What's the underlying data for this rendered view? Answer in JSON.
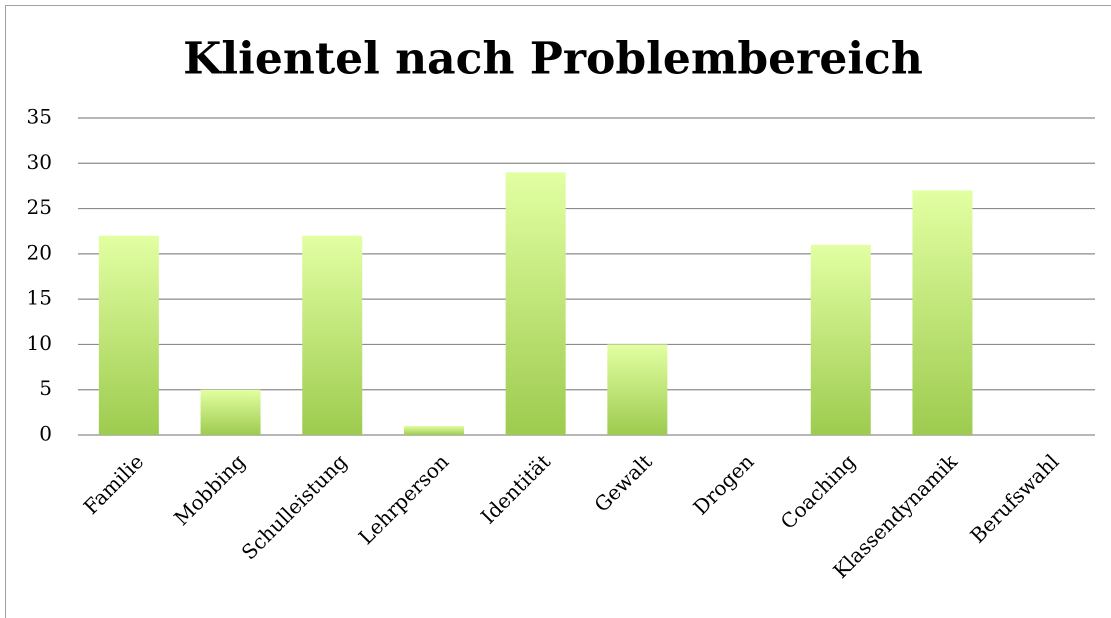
{
  "chart_data": {
    "type": "bar",
    "title": "Klientel nach Problembereich",
    "categories": [
      "Familie",
      "Mobbing",
      "Schulleistung",
      "Lehrperson",
      "Identität",
      "Gewalt",
      "Drogen",
      "Coaching",
      "Klassendynamik",
      "Berufswahl"
    ],
    "values": [
      22,
      5,
      22,
      1,
      29,
      10,
      0,
      21,
      27,
      0
    ],
    "color": "#9dcb4f",
    "ylim": [
      0,
      35
    ],
    "yticks": [
      0,
      5,
      10,
      15,
      20,
      25,
      30,
      35
    ],
    "grid": true
  }
}
